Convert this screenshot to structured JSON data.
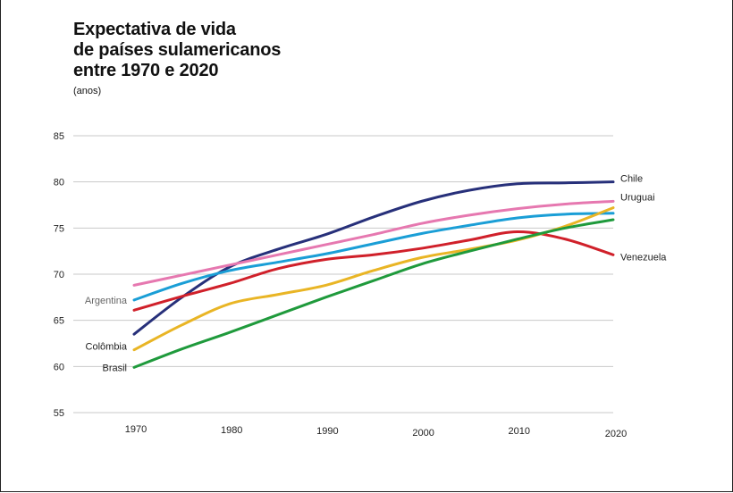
{
  "chart_data": {
    "type": "line",
    "title_lines": [
      "Expectativa de vida",
      "de países sulamericanos",
      "entre 1970 e 2020"
    ],
    "ylabel": "(anos)",
    "xlabel": "",
    "x": [
      1970,
      1975,
      1980,
      1985,
      1990,
      1995,
      2000,
      2005,
      2010,
      2015,
      2020
    ],
    "x_ticks": [
      "1970",
      "1980",
      "1990",
      "2000",
      "2010",
      "2020"
    ],
    "y_ticks": [
      "55",
      "60",
      "65",
      "70",
      "75",
      "80",
      "85"
    ],
    "ylim": [
      55,
      85
    ],
    "xlim": [
      1970,
      2020
    ],
    "grid": true,
    "series": [
      {
        "name": "Chile",
        "color": "#27307a",
        "label_side": "right",
        "values": [
          63.5,
          67.5,
          70.8,
          72.7,
          74.3,
          76.2,
          77.9,
          79.1,
          79.8,
          79.9,
          80.0
        ]
      },
      {
        "name": "Uruguai",
        "color": "#e678b0",
        "label_side": "right",
        "values": [
          68.8,
          69.9,
          71.0,
          72.1,
          73.2,
          74.3,
          75.5,
          76.4,
          77.1,
          77.6,
          77.9
        ]
      },
      {
        "name": "Argentina",
        "color": "#1a9ed6",
        "label_side": "left",
        "values": [
          67.2,
          69.0,
          70.4,
          71.3,
          72.2,
          73.3,
          74.4,
          75.3,
          76.1,
          76.5,
          76.6
        ]
      },
      {
        "name": "Venezuela",
        "color": "#d0202a",
        "label_side": "right",
        "values": [
          66.1,
          67.6,
          69.0,
          70.6,
          71.6,
          72.1,
          72.8,
          73.7,
          74.6,
          73.8,
          72.1
        ]
      },
      {
        "name": "Colômbia",
        "color": "#e9b525",
        "label_side": "left",
        "values": [
          61.8,
          64.5,
          66.8,
          67.8,
          68.8,
          70.4,
          71.8,
          72.7,
          73.7,
          75.2,
          77.2
        ]
      },
      {
        "name": "Brasil",
        "color": "#1f9a3c",
        "label_side": "left",
        "values": [
          59.9,
          61.9,
          63.7,
          65.6,
          67.5,
          69.3,
          71.1,
          72.5,
          73.8,
          75.0,
          75.9
        ]
      }
    ]
  }
}
